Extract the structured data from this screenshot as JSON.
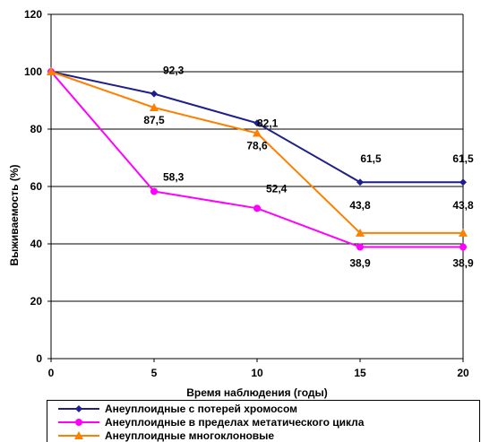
{
  "chart_data": {
    "type": "line",
    "title": "",
    "xlabel": "Время наблюдения (годы)",
    "ylabel": "Выживаемость  (%)",
    "x": [
      0,
      5,
      10,
      15,
      20
    ],
    "xlim": [
      0,
      20
    ],
    "ylim": [
      0,
      120
    ],
    "yticks": [
      0,
      20,
      40,
      60,
      80,
      100,
      120
    ],
    "grid": "horizontal",
    "legend": "bottom",
    "series": [
      {
        "name": "Анеуплоидные с потерей хромосом",
        "values": [
          100,
          92.3,
          82.1,
          61.5,
          61.5
        ],
        "labels": [
          "",
          "92,3",
          "82,1",
          "61,5",
          "61,5"
        ],
        "color": "#1f1f8c",
        "marker": "diamond"
      },
      {
        "name": "Анеуплоидные в пределах метатического цикла",
        "values": [
          100,
          58.3,
          52.4,
          38.9,
          38.9
        ],
        "labels": [
          "",
          "58,3",
          "52,4",
          "38,9",
          "38,9"
        ],
        "color": "#ff00ff",
        "marker": "circle"
      },
      {
        "name": "Анеуплоидные многоклоновые",
        "values": [
          100,
          87.5,
          78.6,
          43.8,
          43.8
        ],
        "labels": [
          "",
          "87,5",
          "78,6",
          "43,8",
          "43,8"
        ],
        "color": "#ff7f00",
        "marker": "triangle"
      }
    ]
  }
}
